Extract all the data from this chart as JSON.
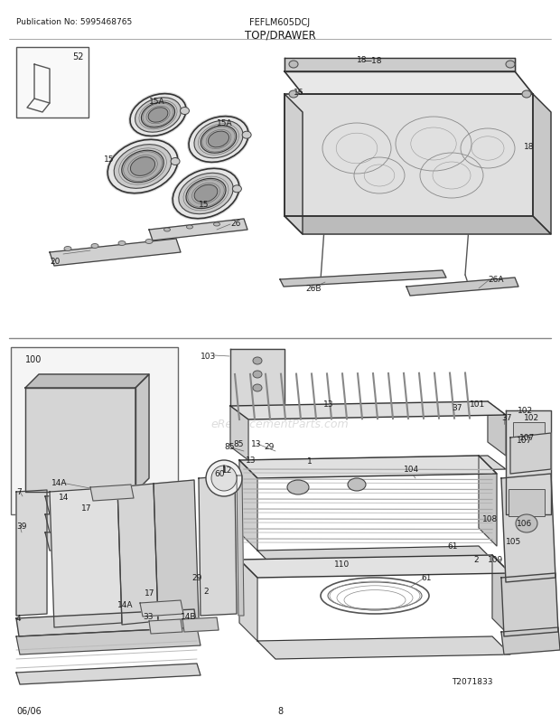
{
  "title": "TOP/DRAWER",
  "pub_no": "Publication No: 5995468765",
  "model": "FEFLM605DCJ",
  "date": "06/06",
  "page": "8",
  "watermark": "eReplacementParts.com",
  "bg_color": "#ffffff",
  "line_color": "#333333",
  "text_color": "#1a1a1a",
  "fig_width": 6.2,
  "fig_height": 8.03,
  "dpi": 100
}
